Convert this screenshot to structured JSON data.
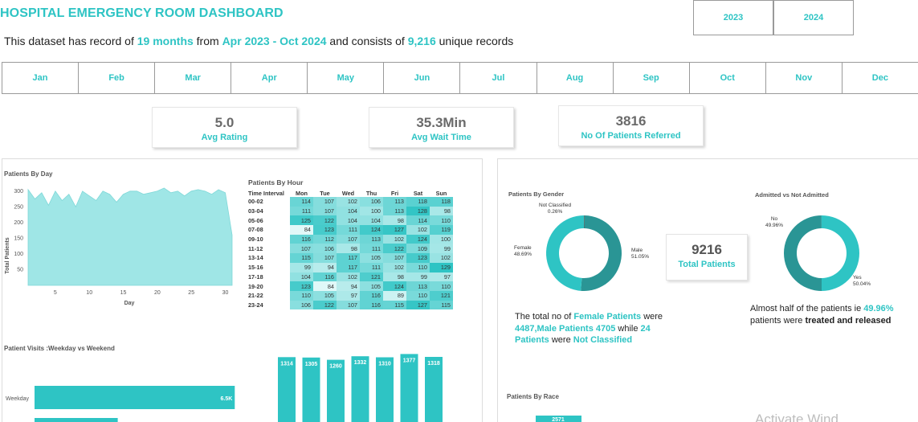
{
  "header": {
    "title": "HOSPITAL EMERGENCY ROOM DASHBOARD",
    "subtitle": {
      "p1": "This dataset has record of ",
      "months": "19 months",
      "p2": " from ",
      "range": "Apr 2023 - Oct 2024",
      "p3": " and consists of ",
      "records": "9,216",
      "p4": " unique records"
    }
  },
  "years": [
    "2023",
    "2024"
  ],
  "months": [
    "Jan",
    "Feb",
    "Mar",
    "Apr",
    "May",
    "Jun",
    "Jul",
    "Aug",
    "Sep",
    "Oct",
    "Nov",
    "Dec"
  ],
  "kpis": {
    "rating": {
      "value": "5.0",
      "label": "Avg Rating"
    },
    "wait": {
      "value": "35.3Min",
      "label": "Avg Wait Time"
    },
    "referred": {
      "value": "3816",
      "label": "No Of Patients Referred"
    }
  },
  "colors": {
    "accent": "#2ec4c4",
    "area": "#9fe6e6",
    "dark": "#2a9595"
  },
  "patients_by_day": {
    "title": "Patients By Day",
    "ylabel": "Total Patients",
    "xlabel": "Day",
    "y_ticks": [
      "300",
      "250",
      "200",
      "150",
      "100",
      "50"
    ],
    "x_ticks": [
      "5",
      "10",
      "15",
      "20",
      "25",
      "30"
    ]
  },
  "heatmap": {
    "title": "Patients By Hour",
    "corner": "Time Interval",
    "days": [
      "Mon",
      "Tue",
      "Wed",
      "Thu",
      "Fri",
      "Sat",
      "Sun"
    ],
    "rows": [
      {
        "label": "00-02",
        "values": [
          114,
          107,
          102,
          106,
          113,
          118,
          118
        ]
      },
      {
        "label": "03-04",
        "values": [
          111,
          107,
          104,
          100,
          113,
          128,
          98
        ]
      },
      {
        "label": "05-06",
        "values": [
          125,
          122,
          104,
          104,
          98,
          114,
          110
        ]
      },
      {
        "label": "07-08",
        "values": [
          84,
          123,
          111,
          124,
          127,
          102,
          119
        ]
      },
      {
        "label": "09-10",
        "values": [
          116,
          112,
          107,
          113,
          102,
          124,
          100
        ]
      },
      {
        "label": "11-12",
        "values": [
          107,
          106,
          98,
          111,
          122,
          109,
          99
        ]
      },
      {
        "label": "13-14",
        "values": [
          115,
          107,
          117,
          105,
          107,
          123,
          102
        ]
      },
      {
        "label": "15-16",
        "values": [
          99,
          94,
          117,
          111,
          102,
          110,
          129
        ]
      },
      {
        "label": "17-18",
        "values": [
          104,
          116,
          102,
          121,
          98,
          99,
          97
        ]
      },
      {
        "label": "19-20",
        "values": [
          123,
          84,
          94,
          105,
          124,
          113,
          110
        ]
      },
      {
        "label": "21-22",
        "values": [
          110,
          105,
          97,
          116,
          89,
          110,
          121
        ]
      },
      {
        "label": "23-24",
        "values": [
          106,
          122,
          107,
          116,
          115,
          127,
          115
        ]
      }
    ]
  },
  "weekday_weekend": {
    "title": "Patient Visits :Weekday vs Weekend",
    "categories": [
      "Weekday"
    ],
    "weekday_label": "6.5K"
  },
  "day_columns": {
    "values": [
      "1314",
      "1305",
      "1260",
      "1332",
      "1310",
      "1377",
      "1318"
    ]
  },
  "gender": {
    "title": "Patients By Gender",
    "not_classified": {
      "name": "Not Classified",
      "pct": "0.26%"
    },
    "female": {
      "name": "Female",
      "pct": "48.69%"
    },
    "male": {
      "name": "Male",
      "pct": "51.05%"
    },
    "note": {
      "t1": "The total no of ",
      "h1": "Female Patients",
      "t2": " were ",
      "h2": "4487,Male Patients 4705",
      "t3": " while ",
      "h3": "24 Patients",
      "t4": " were ",
      "h4": "Not Classified"
    }
  },
  "total": {
    "value": "9216",
    "label": "Total Patients"
  },
  "admitted": {
    "title": "Admitted vs Not Admitted",
    "no": {
      "name": "No",
      "pct": "49.96%"
    },
    "yes": {
      "name": "Yes",
      "pct": "50.04%"
    },
    "note": {
      "t1": "Almost half of the patients ie ",
      "h1": "49.96%",
      "t2": " patients were ",
      "b1": "treated and released"
    }
  },
  "race": {
    "title": "Patients By Race",
    "first_value": "2571"
  },
  "watermark": "Activate Wind",
  "chart_data": [
    {
      "type": "area",
      "title": "Patients By Day",
      "xlabel": "Day",
      "ylabel": "Total Patients",
      "x": [
        1,
        2,
        3,
        4,
        5,
        6,
        7,
        8,
        9,
        10,
        11,
        12,
        13,
        14,
        15,
        16,
        17,
        18,
        19,
        20,
        21,
        22,
        23,
        24,
        25,
        26,
        27,
        28,
        29,
        30,
        31
      ],
      "values": [
        305,
        275,
        295,
        255,
        300,
        270,
        290,
        250,
        300,
        285,
        270,
        300,
        290,
        265,
        290,
        300,
        300,
        290,
        295,
        300,
        310,
        295,
        300,
        285,
        300,
        305,
        300,
        290,
        305,
        295,
        160
      ],
      "ylim": [
        0,
        320
      ],
      "xlim": [
        1,
        31
      ]
    },
    {
      "type": "heatmap",
      "title": "Patients By Hour",
      "x": [
        "Mon",
        "Tue",
        "Wed",
        "Thu",
        "Fri",
        "Sat",
        "Sun"
      ],
      "y": [
        "00-02",
        "03-04",
        "05-06",
        "07-08",
        "09-10",
        "11-12",
        "13-14",
        "15-16",
        "17-18",
        "19-20",
        "21-22",
        "23-24"
      ]
    },
    {
      "type": "bar",
      "title": "Patient Visits :Weekday vs Weekend",
      "categories": [
        "Weekday",
        ""
      ],
      "values": [
        6500,
        2700
      ],
      "xlim": [
        0,
        6700
      ]
    },
    {
      "type": "bar",
      "categories": [
        "1",
        "2",
        "3",
        "4",
        "5",
        "6",
        "7"
      ],
      "values": [
        1314,
        1305,
        1260,
        1332,
        1310,
        1377,
        1318
      ],
      "ylim": [
        0,
        1400
      ]
    },
    {
      "type": "pie",
      "title": "Patients By Gender",
      "categories": [
        "Not Classified",
        "Male",
        "Female"
      ],
      "values": [
        0.26,
        51.05,
        48.69
      ]
    },
    {
      "type": "pie",
      "title": "Admitted vs Not Admitted",
      "categories": [
        "No",
        "Yes"
      ],
      "values": [
        49.96,
        50.04
      ]
    }
  ]
}
